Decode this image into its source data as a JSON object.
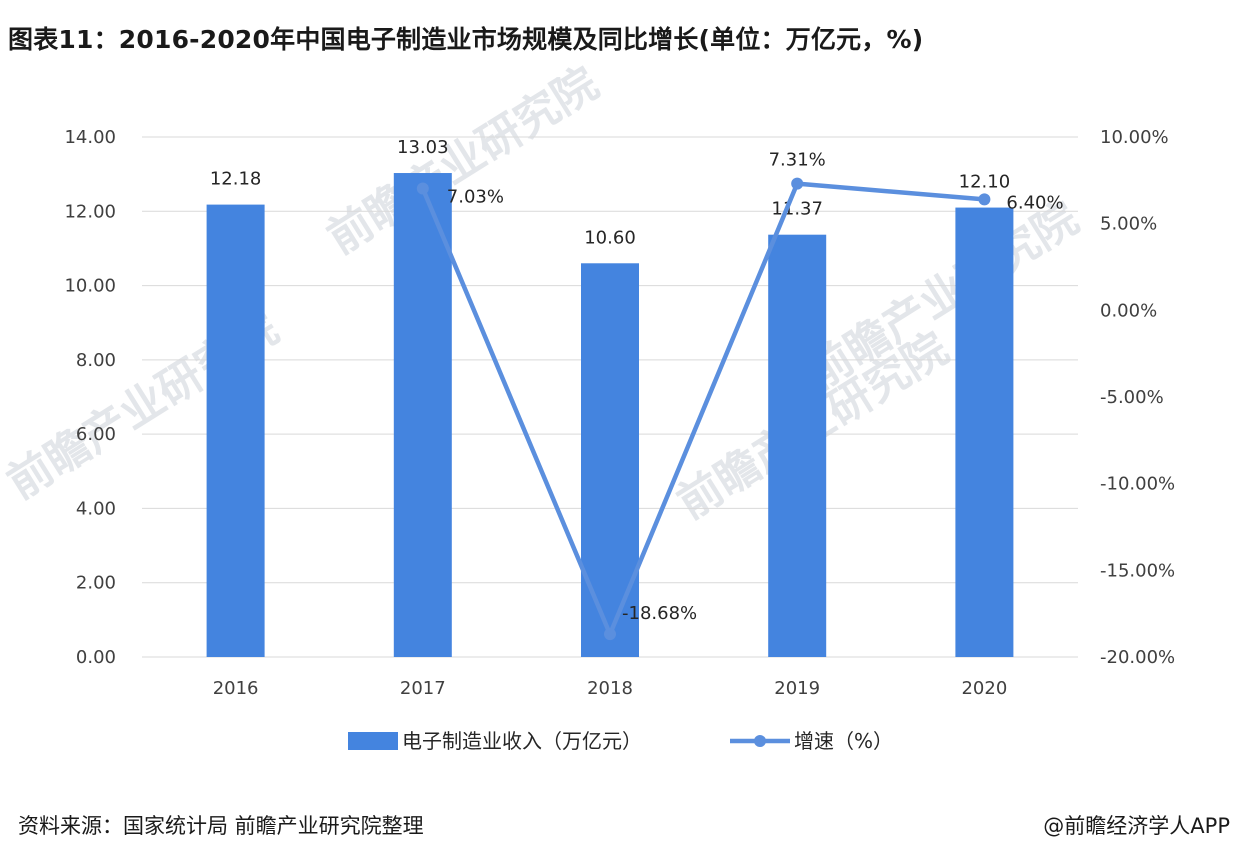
{
  "title": "图表11：2016-2020年中国电子制造业市场规模及同比增长(单位：万亿元，%)",
  "source": "资料来源：国家统计局 前瞻产业研究院整理",
  "brand": "@前瞻经济学人APP",
  "watermark": "前瞻产业研究院",
  "colors": {
    "bar": "#4484df",
    "line": "#5b8fde",
    "grid": "#d9d9d9"
  },
  "chart_data": {
    "type": "bar",
    "categories": [
      "2016",
      "2017",
      "2018",
      "2019",
      "2020"
    ],
    "series": [
      {
        "name": "电子制造业收入（万亿元）",
        "type": "bar",
        "axis": "left",
        "values": [
          12.18,
          13.03,
          10.6,
          11.37,
          12.1
        ],
        "labels": [
          "12.18",
          "13.03",
          "10.60",
          "11.37",
          "12.10"
        ]
      },
      {
        "name": "增速（%）",
        "type": "line",
        "axis": "right",
        "x": [
          "2017",
          "2018",
          "2019",
          "2020"
        ],
        "values": [
          7.03,
          -18.68,
          7.31,
          6.4
        ],
        "labels": [
          "7.03%",
          "-18.68%",
          "7.31%",
          "6.40%"
        ]
      }
    ],
    "y_left": {
      "min": 0,
      "max": 14,
      "step": 2,
      "ticks": [
        "0.00",
        "2.00",
        "4.00",
        "6.00",
        "8.00",
        "10.00",
        "12.00",
        "14.00"
      ]
    },
    "y_right": {
      "min": -20,
      "max": 10,
      "step": 5,
      "ticks": [
        "-20.00%",
        "-15.00%",
        "-10.00%",
        "-5.00%",
        "0.00%",
        "5.00%",
        "10.00%"
      ]
    },
    "grid": true,
    "legend": "bottom"
  }
}
